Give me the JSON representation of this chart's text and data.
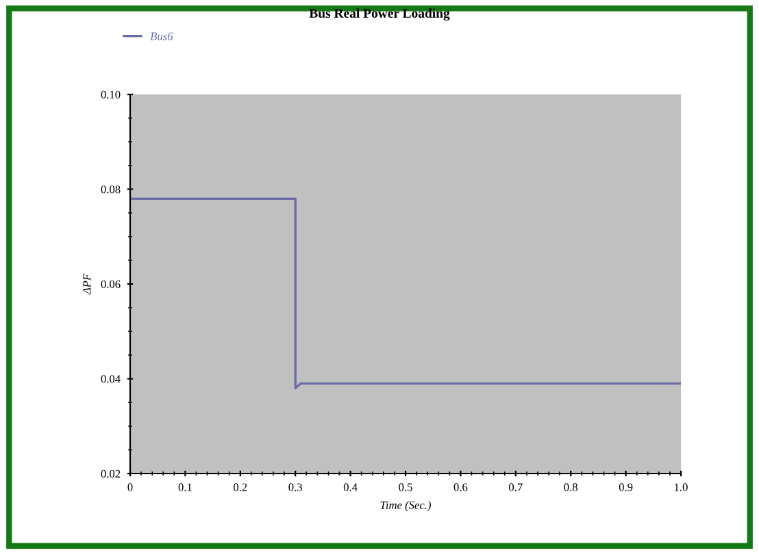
{
  "chart_data": {
    "type": "line",
    "title": "Bus Real Power Loading",
    "xlabel": "Time (Sec.)",
    "ylabel": "ΔPF",
    "series": [
      {
        "name": "Bus6",
        "color": "#6b6ba8",
        "x": [
          0,
          0.1,
          0.2,
          0.3,
          0.3,
          0.31,
          0.4,
          0.5,
          0.6,
          0.7,
          0.8,
          0.9,
          1.0
        ],
        "values": [
          0.078,
          0.078,
          0.078,
          0.078,
          0.038,
          0.039,
          0.039,
          0.039,
          0.039,
          0.039,
          0.039,
          0.039,
          0.039
        ]
      }
    ],
    "xlim": [
      0,
      1.0
    ],
    "xticks": [
      0,
      0.1,
      0.2,
      0.3,
      0.4,
      0.5,
      0.6,
      0.7,
      0.8,
      0.9,
      {
        "value": 1.0,
        "label": "1.0"
      }
    ],
    "ylim": [
      0.02,
      0.1
    ],
    "yticks": [
      {
        "value": 0.02,
        "label": "0.02"
      },
      {
        "value": 0.04,
        "label": "0.04"
      },
      {
        "value": 0.06,
        "label": "0.06"
      },
      {
        "value": 0.08,
        "label": "0.08"
      },
      {
        "value": 0.1,
        "label": "0.10"
      }
    ],
    "grid": false,
    "legend": "top left",
    "line_style": "solid",
    "marker": "none"
  }
}
